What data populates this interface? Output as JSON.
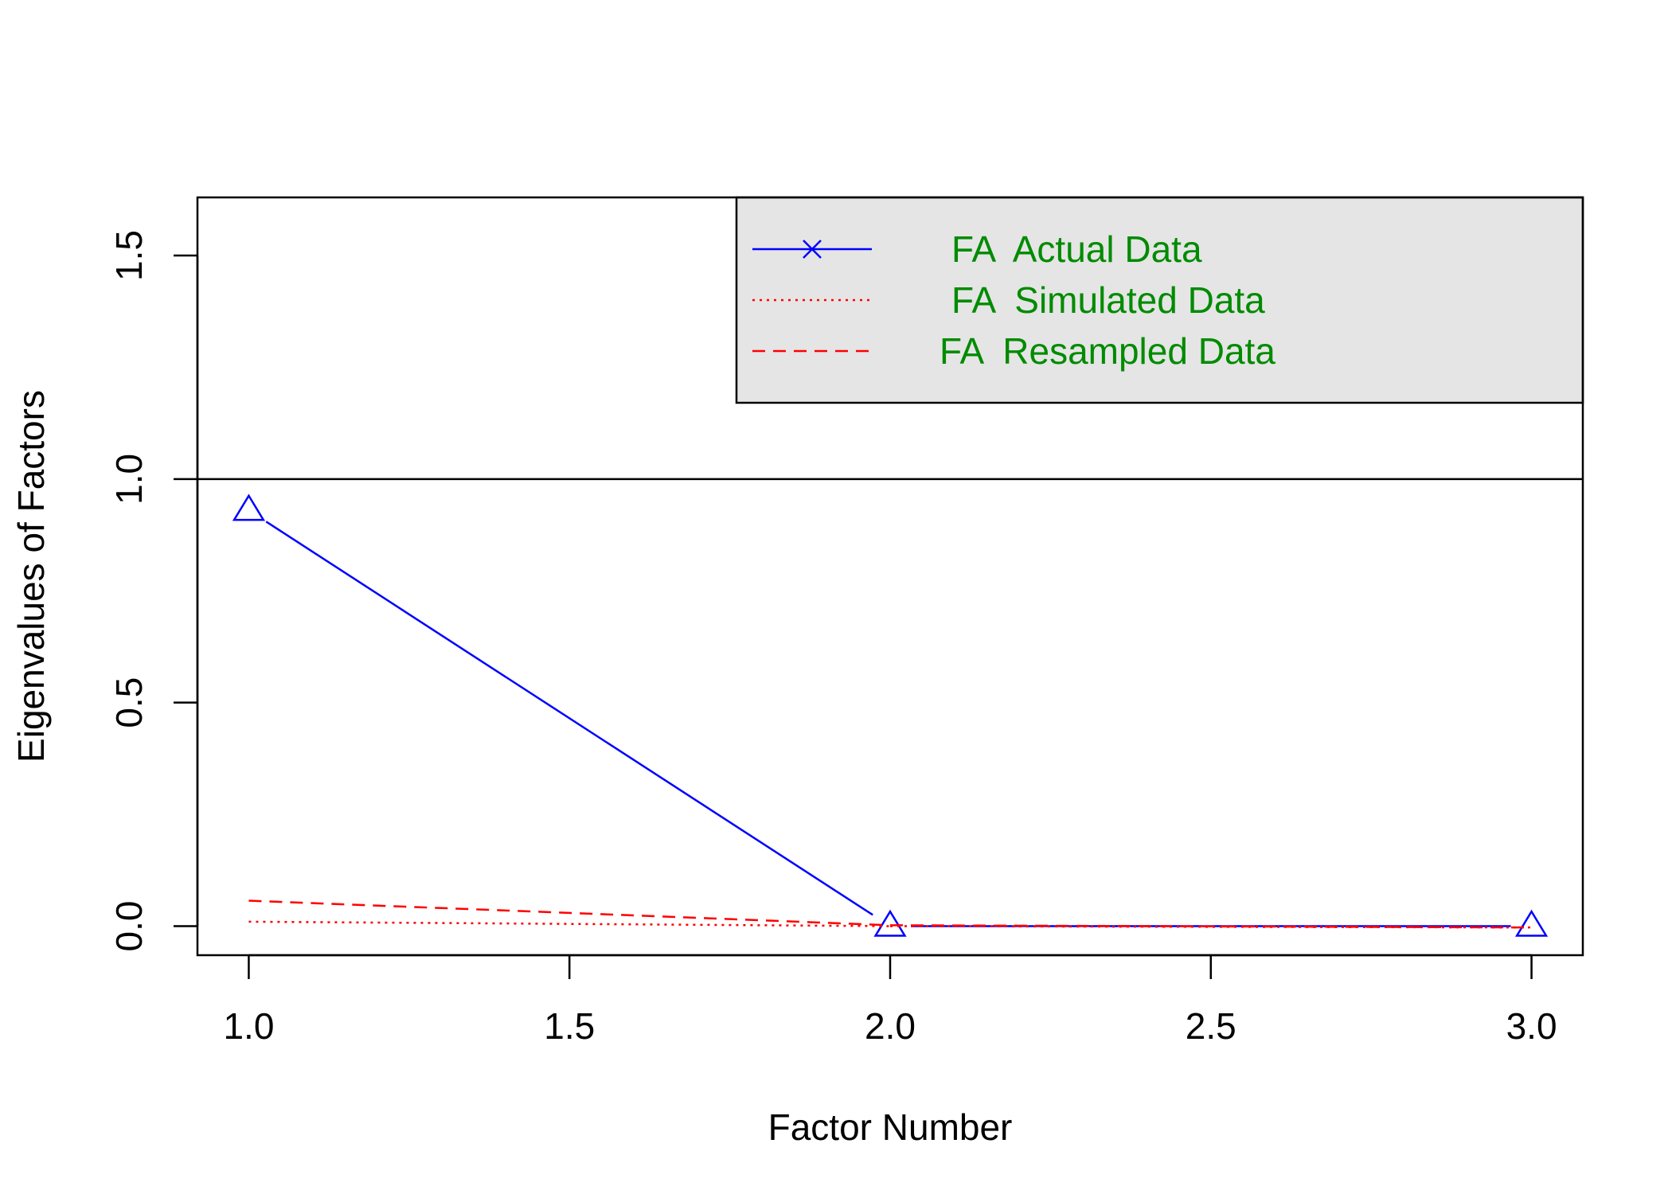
{
  "chart_data": {
    "type": "line",
    "title": "",
    "xlabel": "Factor Number",
    "ylabel": "Eigenvalues of Factors",
    "xlim": [
      0.92,
      3.08
    ],
    "ylim": [
      -0.065,
      1.63
    ],
    "x_ticks": [
      "1.0",
      "1.5",
      "2.0",
      "2.5",
      "3.0"
    ],
    "x_tick_values": [
      1.0,
      1.5,
      2.0,
      2.5,
      3.0
    ],
    "y_ticks": [
      "0.0",
      "0.5",
      "1.0",
      "1.5"
    ],
    "y_tick_values": [
      0.0,
      0.5,
      1.0,
      1.5
    ],
    "reference_line": {
      "y": 1.0,
      "color": "#000000"
    },
    "grid": false,
    "legend_placement": "top-right",
    "legend_background": "#e5e5e5",
    "legend_text_color": "#008b00",
    "series": [
      {
        "name": "FA  Actual Data",
        "x": [
          1,
          2,
          3
        ],
        "values": [
          0.93,
          0.0,
          0.0
        ],
        "color": "#0000ff",
        "line_style": "solid",
        "marker": "triangle",
        "legend_marker": "x"
      },
      {
        "name": "FA  Simulated Data",
        "x": [
          1,
          2,
          3
        ],
        "values": [
          0.01,
          0.0,
          -0.003
        ],
        "color": "#ff0000",
        "line_style": "dotted",
        "marker": "none"
      },
      {
        "name": "FA  Resampled Data",
        "x": [
          1,
          2,
          3
        ],
        "values": [
          0.057,
          0.002,
          -0.003
        ],
        "color": "#ff0000",
        "line_style": "dashed",
        "marker": "none"
      }
    ]
  }
}
